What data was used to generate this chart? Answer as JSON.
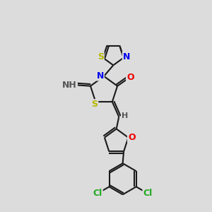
{
  "bg_color": "#dcdcdc",
  "bond_color": "#1a1a1a",
  "bond_width": 1.5,
  "atom_colors": {
    "S": "#b8b800",
    "N": "#0000ee",
    "O": "#ee0000",
    "Cl": "#22aa22",
    "H_label": "#555555",
    "C": "#1a1a1a"
  },
  "figsize": [
    3.0,
    3.0
  ],
  "dpi": 100
}
